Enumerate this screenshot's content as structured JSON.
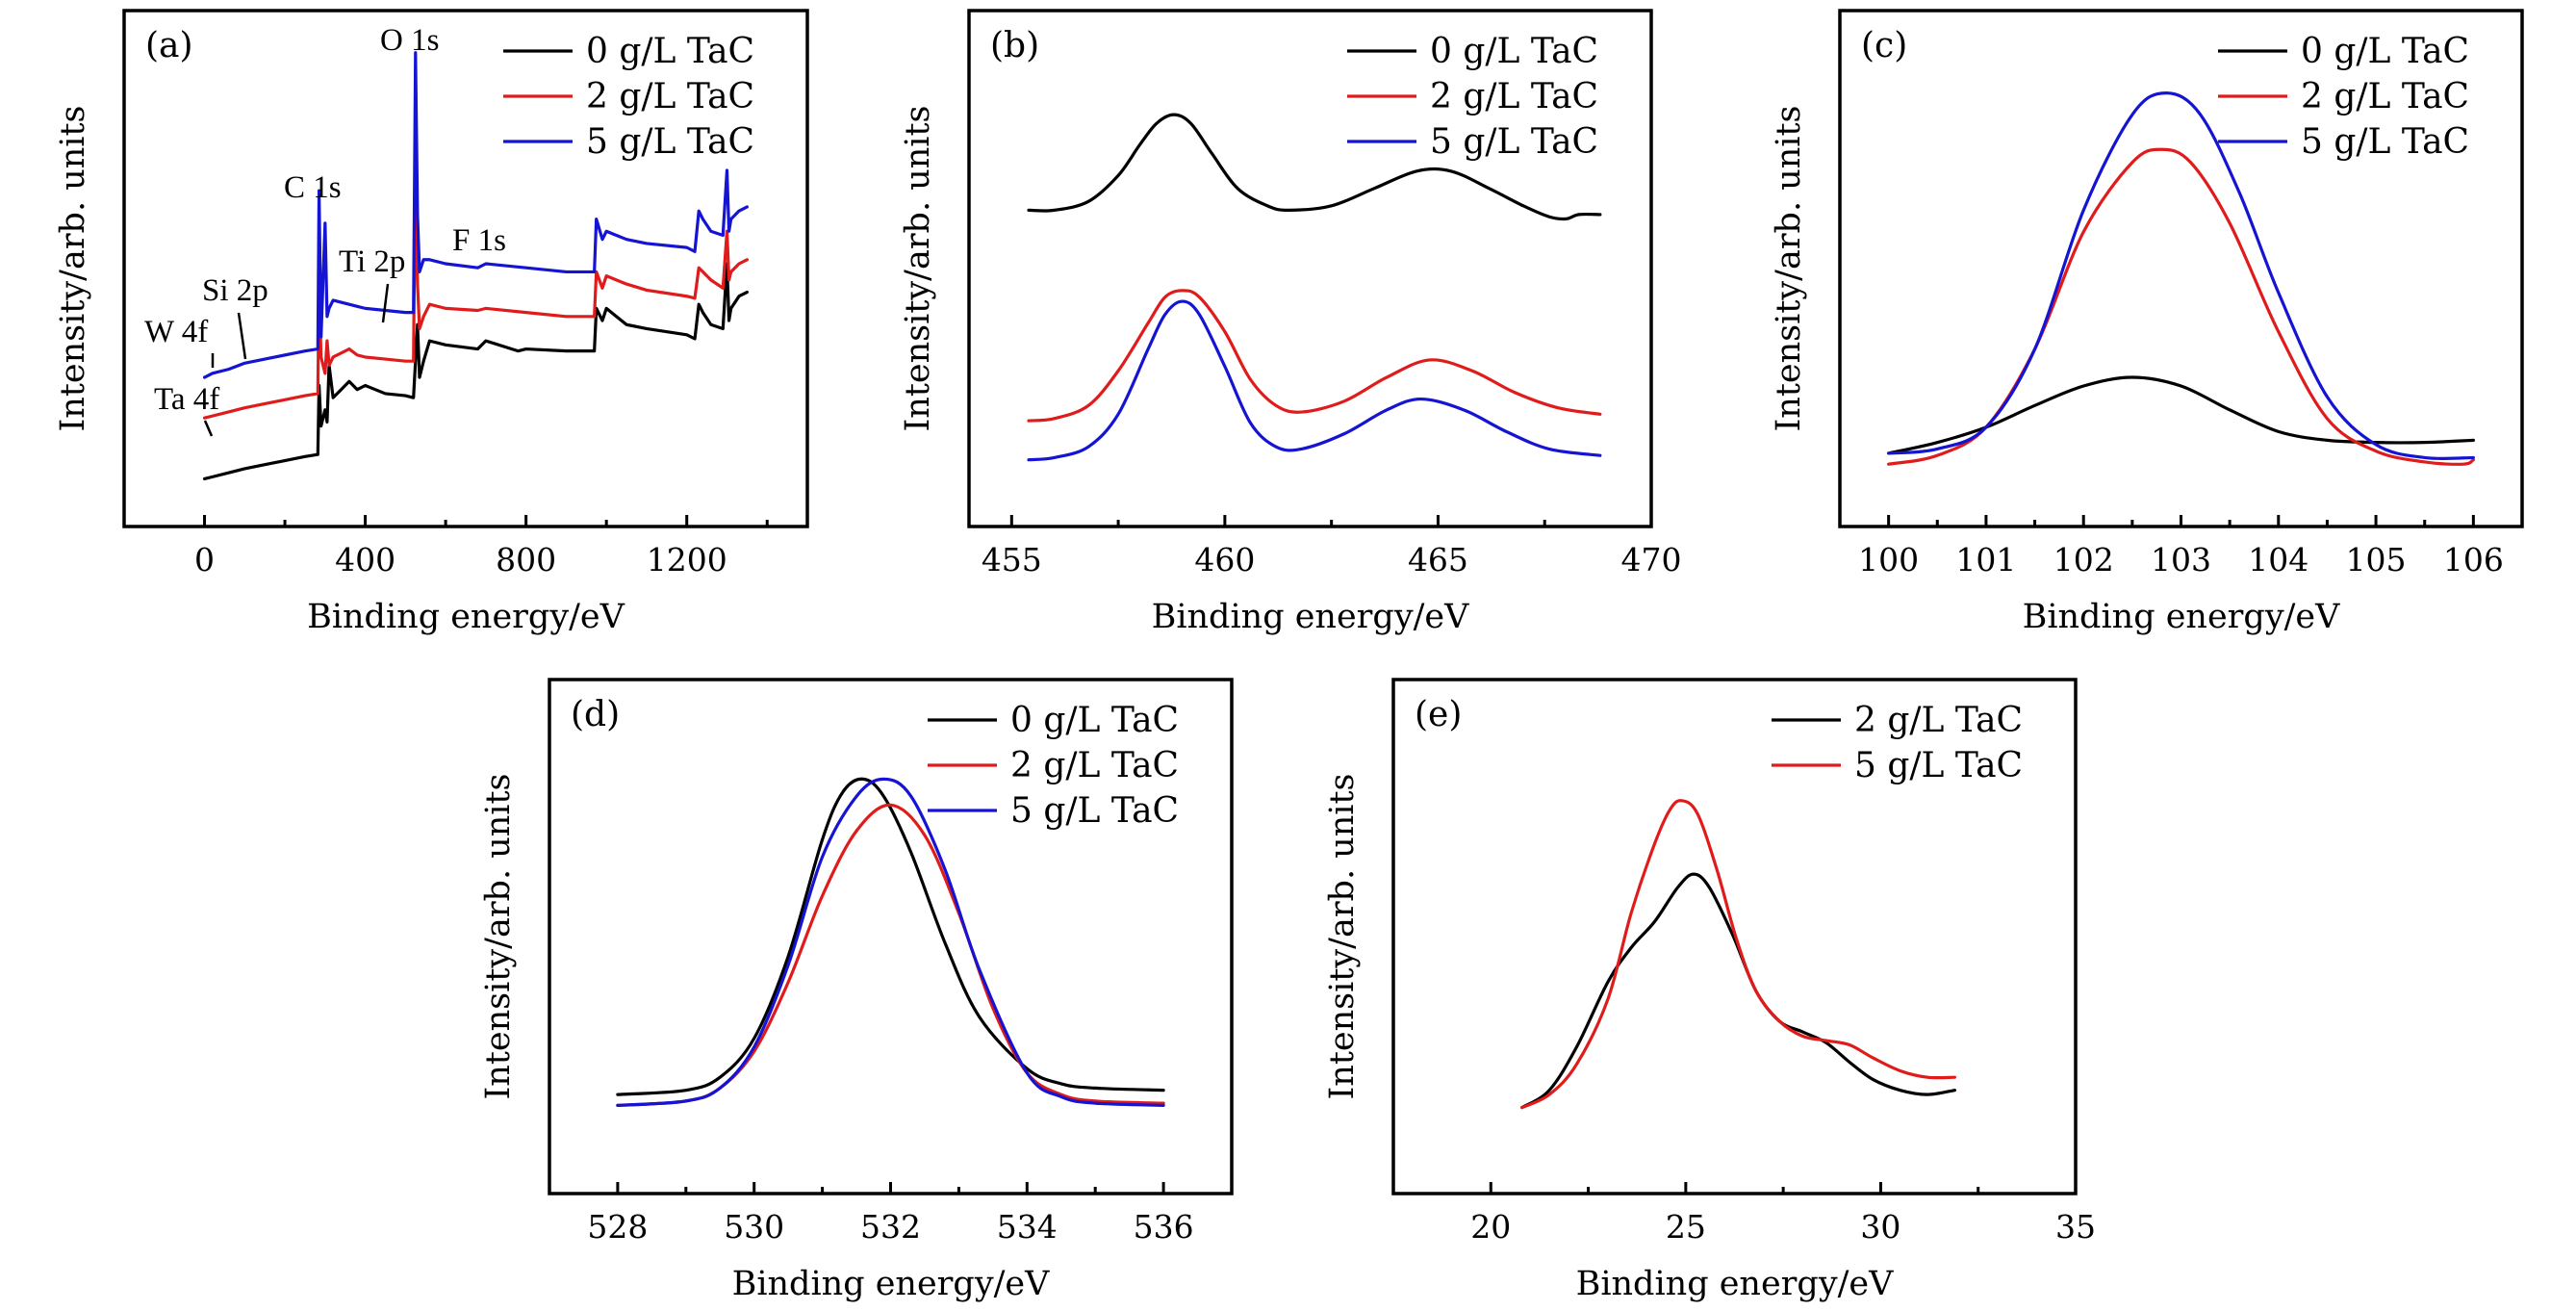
{
  "figure": {
    "colors": {
      "black": "#000000",
      "red": "#e01b1b",
      "blue": "#1414d2"
    }
  },
  "chart_data": [
    {
      "id": "a",
      "type": "line",
      "panel_label": "(a)",
      "title": "",
      "xlabel": "Binding energy/eV",
      "ylabel": "Intensity/arb. units",
      "xlim": [
        -200,
        1500
      ],
      "ylim": [
        0,
        100
      ],
      "xticks": [
        0,
        400,
        800,
        1200
      ],
      "xminor_step": 200,
      "yticks": [],
      "grid": false,
      "legend_position": "top-right",
      "series": [
        {
          "name": "0 g/L TaC",
          "color": "#000000",
          "x": [
            0,
            20,
            60,
            100,
            150,
            200,
            250,
            282,
            285,
            290,
            300,
            305,
            310,
            320,
            340,
            360,
            380,
            400,
            450,
            500,
            520,
            530,
            535,
            545,
            560,
            600,
            680,
            700,
            780,
            800,
            900,
            970,
            975,
            990,
            1000,
            1050,
            1100,
            1200,
            1220,
            1230,
            1240,
            1260,
            1290,
            1300,
            1305,
            1310,
            1330,
            1350
          ],
          "y": [
            7,
            7.5,
            8.5,
            9.5,
            10.5,
            11.5,
            12.5,
            13,
            30,
            20,
            24,
            21,
            35,
            27,
            29,
            31,
            29,
            30,
            28,
            27.5,
            27,
            45,
            32,
            36,
            41,
            40,
            39,
            41,
            38.5,
            39,
            38.5,
            38.5,
            49,
            46,
            49,
            45,
            44,
            42.5,
            41.5,
            50,
            48,
            45,
            44,
            60,
            46,
            49,
            52,
            53
          ]
        },
        {
          "name": "2 g/L TaC",
          "color": "#e01b1b",
          "x": [
            0,
            20,
            60,
            100,
            150,
            200,
            250,
            282,
            285,
            290,
            300,
            305,
            310,
            320,
            340,
            360,
            380,
            400,
            450,
            500,
            520,
            525,
            530,
            535,
            545,
            560,
            600,
            680,
            700,
            800,
            900,
            970,
            975,
            990,
            1000,
            1050,
            1100,
            1200,
            1220,
            1230,
            1240,
            1260,
            1290,
            1300,
            1305,
            1310,
            1330,
            1350
          ],
          "y": [
            22,
            22.5,
            23.5,
            24.5,
            25.5,
            26.5,
            27.5,
            28,
            55,
            37,
            33,
            41,
            35,
            37,
            38,
            39,
            37.5,
            37,
            36.5,
            36,
            36,
            88,
            55,
            44,
            47,
            50,
            49,
            48.5,
            49,
            48,
            47,
            47,
            58,
            54,
            57,
            55,
            53.5,
            52,
            51.5,
            59,
            58,
            56,
            54,
            68,
            56,
            58,
            60,
            61
          ]
        },
        {
          "name": "5 g/L TaC",
          "color": "#1414d2",
          "x": [
            0,
            20,
            60,
            100,
            150,
            200,
            250,
            282,
            285,
            290,
            300,
            305,
            310,
            320,
            340,
            360,
            380,
            400,
            450,
            500,
            520,
            525,
            530,
            535,
            545,
            560,
            600,
            680,
            700,
            800,
            900,
            970,
            975,
            990,
            1000,
            1050,
            1100,
            1200,
            1220,
            1230,
            1240,
            1260,
            1290,
            1300,
            1305,
            1310,
            1330,
            1350
          ],
          "y": [
            32,
            33,
            34,
            35.5,
            36.5,
            37.5,
            38.5,
            39,
            78,
            42,
            70,
            47,
            49,
            51,
            50.5,
            50,
            49.5,
            49,
            48.5,
            48,
            48,
            112,
            72,
            58,
            61,
            61,
            60,
            59,
            60,
            59,
            58,
            58,
            71,
            66,
            68,
            66,
            65,
            64,
            63,
            73,
            71,
            68,
            67,
            83,
            68,
            71,
            73,
            74
          ]
        }
      ],
      "annotations": [
        {
          "text": "O 1s",
          "x": 530
        },
        {
          "text": "C 1s",
          "x": 285
        },
        {
          "text": "Ti 2p",
          "x": 458
        },
        {
          "text": "F 1s",
          "x": 685
        },
        {
          "text": "Si 2p",
          "x": 100
        },
        {
          "text": "W 4f",
          "x": 33
        },
        {
          "text": "Ta 4f",
          "x": 25
        }
      ]
    },
    {
      "id": "b",
      "type": "line",
      "panel_label": "(b)",
      "title": "",
      "xlabel": "Binding energy/eV",
      "ylabel": "Intensity/arb. units",
      "xlim": [
        454,
        470
      ],
      "ylim": [
        0,
        100
      ],
      "xticks": [
        455,
        460,
        465,
        470
      ],
      "xminor_step": 2.5,
      "yticks": [],
      "grid": false,
      "legend_position": "top-right",
      "series": [
        {
          "name": "0 g/L TaC",
          "color": "#000000",
          "x": [
            455.4,
            456,
            456.8,
            457.5,
            458,
            458.4,
            458.8,
            459.2,
            459.7,
            460.3,
            461,
            461.5,
            462.5,
            463.5,
            464.5,
            465.3,
            466.2,
            467,
            467.6,
            468,
            468.3,
            468.8
          ],
          "y": [
            64,
            64,
            66,
            72,
            79,
            84,
            86,
            84,
            77,
            69,
            65,
            64,
            65,
            69,
            73,
            73,
            69,
            65,
            62.5,
            62,
            63,
            63
          ]
        },
        {
          "name": "2 g/L TaC",
          "color": "#e01b1b",
          "x": [
            455.4,
            456,
            456.8,
            457.5,
            458.2,
            458.6,
            459,
            459.4,
            460,
            460.6,
            461.2,
            461.8,
            462.8,
            463.8,
            464.8,
            465.8,
            466.8,
            467.8,
            468.8
          ],
          "y": [
            15.5,
            16,
            19,
            27,
            38,
            44,
            45.5,
            44,
            36,
            25,
            19,
            17.5,
            20,
            25.5,
            29.5,
            27,
            22,
            18.5,
            17
          ]
        },
        {
          "name": "5 g/L TaC",
          "color": "#1414d2",
          "x": [
            455.4,
            456,
            456.8,
            457.5,
            458.2,
            458.6,
            459,
            459.4,
            460,
            460.6,
            461.2,
            461.8,
            462.8,
            463.8,
            464.6,
            465.6,
            466.6,
            467.6,
            468.8
          ],
          "y": [
            6.5,
            7,
            9.5,
            17,
            32,
            40,
            43,
            40,
            28,
            15,
            9.5,
            9,
            12.5,
            18,
            20.5,
            18,
            13,
            9,
            7.5
          ]
        }
      ]
    },
    {
      "id": "c",
      "type": "line",
      "panel_label": "(c)",
      "title": "",
      "xlabel": "Binding energy/eV",
      "ylabel": "Intensity/arb. units",
      "xlim": [
        99.5,
        106.5
      ],
      "ylim": [
        0,
        100
      ],
      "xticks": [
        100,
        101,
        102,
        103,
        104,
        105,
        106
      ],
      "xminor_step": 0.5,
      "yticks": [],
      "grid": false,
      "legend_position": "top-right",
      "series": [
        {
          "name": "0 g/L TaC",
          "color": "#000000",
          "x": [
            100,
            100.5,
            101,
            101.5,
            102,
            102.5,
            103,
            103.5,
            104,
            104.5,
            105,
            105.5,
            106
          ],
          "y": [
            8,
            10.5,
            14,
            19,
            23.5,
            25.5,
            23.5,
            18,
            13,
            11,
            10.5,
            10.5,
            11
          ]
        },
        {
          "name": "2 g/L TaC",
          "color": "#e01b1b",
          "x": [
            100,
            100.5,
            101,
            101.5,
            102,
            102.5,
            102.8,
            103.1,
            103.5,
            104,
            104.5,
            105,
            105.5,
            105.9,
            106
          ],
          "y": [
            5.5,
            7.5,
            14,
            32,
            59,
            75,
            78,
            75,
            61,
            36,
            16,
            8.5,
            6,
            5.5,
            6.5
          ]
        },
        {
          "name": "5 g/L TaC",
          "color": "#1414d2",
          "x": [
            100,
            100.5,
            101,
            101.5,
            102,
            102.5,
            102.85,
            103.2,
            103.6,
            104,
            104.5,
            105,
            105.5,
            106
          ],
          "y": [
            8,
            9,
            14,
            32,
            64,
            86,
            91,
            86,
            68,
            45,
            21,
            10,
            7,
            7
          ]
        }
      ]
    },
    {
      "id": "d",
      "type": "line",
      "panel_label": "(d)",
      "title": "",
      "xlabel": "Binding energy/eV",
      "ylabel": "Intensity/arb. units",
      "xlim": [
        527,
        537
      ],
      "ylim": [
        0,
        100
      ],
      "xticks": [
        528,
        530,
        532,
        534,
        536
      ],
      "xminor_step": 1,
      "yticks": [],
      "grid": false,
      "legend_position": "top-right",
      "series": [
        {
          "name": "0 g/L TaC",
          "color": "#000000",
          "x": [
            528,
            529,
            529.5,
            530,
            530.5,
            531,
            531.3,
            531.6,
            531.9,
            532.3,
            532.8,
            533.3,
            534,
            534.5,
            535,
            536
          ],
          "y": [
            14,
            15,
            18,
            27,
            46,
            73,
            84,
            87,
            83,
            70,
            49,
            32,
            20,
            16.5,
            15.5,
            15
          ]
        },
        {
          "name": "2 g/L TaC",
          "color": "#e01b1b",
          "x": [
            528,
            529,
            529.5,
            530,
            530.5,
            531,
            531.5,
            532,
            532.5,
            533,
            533.5,
            534,
            534.5,
            535,
            536
          ],
          "y": [
            11.5,
            12.5,
            15.5,
            24,
            40,
            60,
            75,
            81,
            74,
            56,
            34,
            19,
            14,
            12.5,
            12
          ]
        },
        {
          "name": "5 g/L TaC",
          "color": "#1414d2",
          "x": [
            528,
            529,
            529.5,
            530,
            530.5,
            531,
            531.5,
            531.9,
            532.3,
            532.8,
            533.3,
            534,
            534.5,
            535,
            536
          ],
          "y": [
            11.5,
            12.5,
            15.5,
            25,
            44,
            69,
            83,
            87,
            83,
            66,
            43,
            19,
            13.5,
            12,
            11.5
          ]
        }
      ]
    },
    {
      "id": "e",
      "type": "line",
      "panel_label": "(e)",
      "title": "",
      "xlabel": "Binding energy/eV",
      "ylabel": "Intensity/arb. units",
      "xlim": [
        17.5,
        35
      ],
      "ylim": [
        0,
        100
      ],
      "xticks": [
        20,
        25,
        30,
        35
      ],
      "xminor_step": 2.5,
      "yticks": [],
      "grid": false,
      "legend_position": "top-right",
      "series": [
        {
          "name": "2 g/L TaC",
          "color": "#000000",
          "x": [
            20.8,
            21.5,
            22.2,
            23,
            23.6,
            24.2,
            24.8,
            25.2,
            25.6,
            26.2,
            26.8,
            27.4,
            28,
            28.6,
            29.2,
            29.8,
            30.5,
            31.2,
            31.9
          ],
          "y": [
            11,
            15,
            25,
            40,
            48,
            54,
            62,
            65,
            62,
            51,
            38,
            31,
            28.5,
            26,
            21.5,
            17.5,
            15,
            14,
            15
          ]
        },
        {
          "name": "5 g/L TaC",
          "color": "#e01b1b",
          "x": [
            20.8,
            21.5,
            22.2,
            23,
            23.6,
            24.2,
            24.6,
            24.9,
            25.3,
            25.8,
            26.3,
            26.8,
            27.4,
            28,
            28.6,
            29.2,
            29.8,
            30.5,
            31.2,
            31.9
          ],
          "y": [
            11,
            14,
            21,
            36,
            56,
            72,
            80,
            82,
            79,
            66,
            50,
            38,
            31,
            27.5,
            26.5,
            25.5,
            22.5,
            19.5,
            18,
            18
          ]
        }
      ]
    }
  ]
}
